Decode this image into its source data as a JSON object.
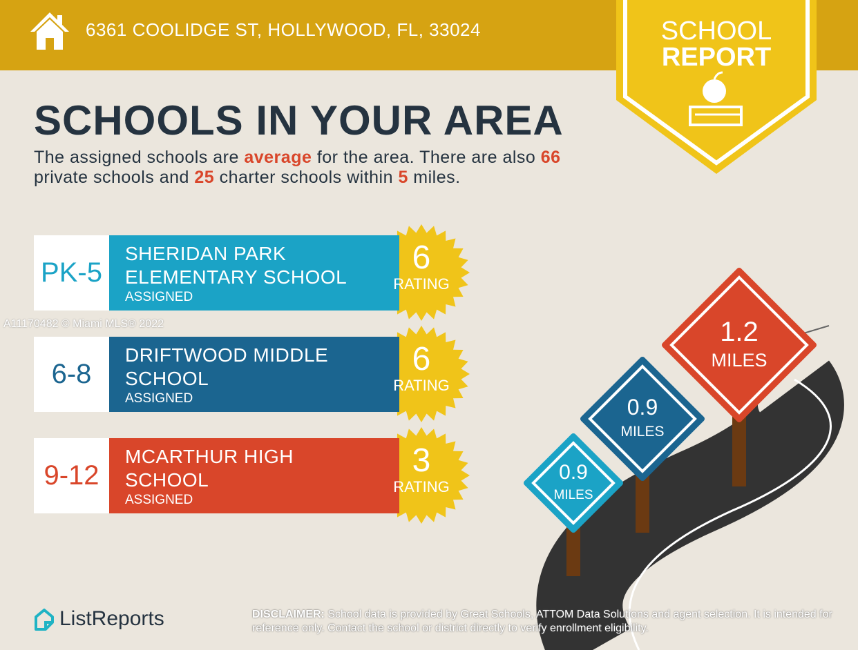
{
  "header": {
    "address": "6361 COOLIDGE ST, HOLLYWOOD, FL, 33024"
  },
  "badge": {
    "line1": "SCHOOL",
    "line2": "REPORT"
  },
  "title": "SCHOOLS IN YOUR AREA",
  "summary": [
    {
      "text": "The assigned schools are ",
      "highlight": false
    },
    {
      "text": "average",
      "highlight": true
    },
    {
      "text": " for the area. There are also ",
      "highlight": false
    },
    {
      "text": "66",
      "highlight": true
    },
    {
      "text": " private schools and ",
      "highlight": false
    },
    {
      "text": "25",
      "highlight": true
    },
    {
      "text": " charter schools within ",
      "highlight": false
    },
    {
      "text": "5",
      "highlight": true
    },
    {
      "text": " miles.",
      "highlight": false
    }
  ],
  "schools": [
    {
      "grades": "PK-5",
      "name": "SHERIDAN PARK ELEMENTARY SCHOOL",
      "status": "ASSIGNED",
      "rating": 6,
      "rating_label": "RATING",
      "color": "#1ba3c6"
    },
    {
      "grades": "6-8",
      "name": "DRIFTWOOD MIDDLE SCHOOL",
      "status": "ASSIGNED",
      "rating": 6,
      "rating_label": "RATING",
      "color": "#1b6590"
    },
    {
      "grades": "9-12",
      "name": "MCARTHUR HIGH SCHOOL",
      "status": "ASSIGNED",
      "rating": 3,
      "rating_label": "RATING",
      "color": "#d9462a"
    }
  ],
  "distances": [
    {
      "distance": 0.9,
      "unit": "MILES",
      "color": "#1ba3c6"
    },
    {
      "distance": 0.9,
      "unit": "MILES",
      "color": "#1b6590"
    },
    {
      "distance": 1.2,
      "unit": "MILES",
      "color": "#d9462a"
    }
  ],
  "watermark": "A11170482 © Miami MLS® 2022",
  "footer": {
    "logo": "ListReports",
    "disclaimer_label": "DISCLAIMER:",
    "disclaimer": " School data is provided by Great Schools, ATTOM Data Solutions and agent selection. It is intended for reference only. Contact the school or district directly to verify enrollment eligibility."
  }
}
